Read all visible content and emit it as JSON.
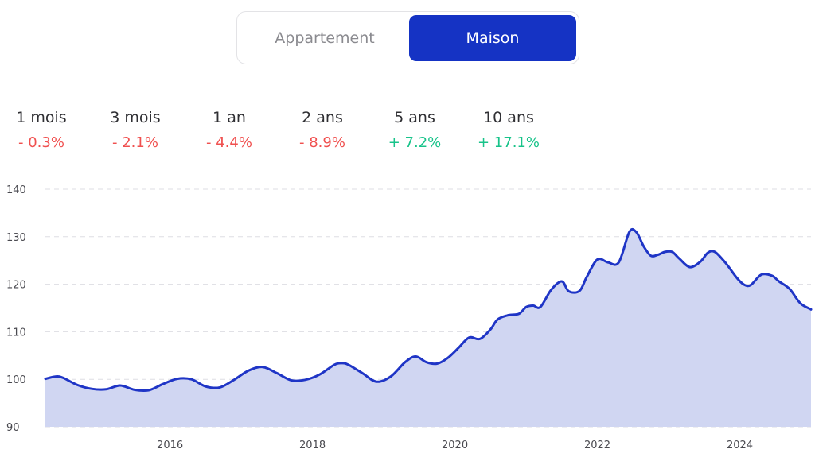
{
  "toggle": {
    "options": [
      {
        "label": "Appartement",
        "active": false
      },
      {
        "label": "Maison",
        "active": true
      }
    ]
  },
  "stats": [
    {
      "label": "1 mois",
      "value": "- 0.3%",
      "trend": "negative"
    },
    {
      "label": "3 mois",
      "value": "- 2.1%",
      "trend": "negative"
    },
    {
      "label": "1 an",
      "value": "- 4.4%",
      "trend": "negative"
    },
    {
      "label": "2 ans",
      "value": "- 8.9%",
      "trend": "negative"
    },
    {
      "label": "5 ans",
      "value": "+ 7.2%",
      "trend": "positive"
    },
    {
      "label": "10 ans",
      "value": "+ 17.1%",
      "trend": "positive"
    }
  ],
  "colors": {
    "accent": "#1533c4",
    "line": "#1f35c6",
    "area": "#d0d6f2",
    "negative": "#f0504f",
    "positive": "#18c38a",
    "grid": "#dddde3"
  },
  "chart_data": {
    "type": "area",
    "ylim": [
      90,
      140
    ],
    "y_ticks": [
      "90",
      "100",
      "110",
      "120",
      "130",
      "140"
    ],
    "x_ticks": [
      {
        "year": 2016,
        "label": "2016"
      },
      {
        "year": 2018,
        "label": "2018"
      },
      {
        "year": 2020,
        "label": "2020"
      },
      {
        "year": 2022,
        "label": "2022"
      },
      {
        "year": 2024,
        "label": "2024"
      }
    ],
    "xlim": [
      2014.25,
      2025.0
    ],
    "grid": true,
    "series": [
      {
        "x": [
          2014.25,
          2014.4,
          2014.5,
          2014.7,
          2014.9,
          2015.1,
          2015.3,
          2015.5,
          2015.7,
          2015.9,
          2016.1,
          2016.3,
          2016.5,
          2016.7,
          2016.9,
          2017.1,
          2017.3,
          2017.5,
          2017.7,
          2017.9,
          2018.1,
          2018.3,
          2018.4,
          2018.5,
          2018.7,
          2018.9,
          2019.1,
          2019.3,
          2019.45,
          2019.6,
          2019.75,
          2019.9,
          2020.05,
          2020.2,
          2020.35,
          2020.5,
          2020.6,
          2020.75,
          2020.9,
          2021.0,
          2021.1,
          2021.2,
          2021.35,
          2021.5,
          2021.6,
          2021.75,
          2021.85,
          2022.0,
          2022.15,
          2022.3,
          2022.45,
          2022.55,
          2022.65,
          2022.75,
          2022.85,
          2022.95,
          2023.05,
          2023.15,
          2023.3,
          2023.45,
          2023.55,
          2023.65,
          2023.8,
          2023.95,
          2024.05,
          2024.15,
          2024.3,
          2024.45,
          2024.55,
          2024.7,
          2024.85,
          2025.0
        ],
        "values": [
          100.1,
          100.6,
          100.3,
          98.8,
          98.0,
          97.9,
          98.7,
          97.8,
          97.7,
          99.0,
          100.1,
          100.0,
          98.5,
          98.3,
          99.9,
          101.8,
          102.6,
          101.3,
          99.8,
          99.9,
          101.0,
          103.0,
          103.4,
          103.1,
          101.3,
          99.5,
          100.6,
          103.6,
          104.8,
          103.6,
          103.3,
          104.5,
          106.6,
          108.8,
          108.5,
          110.5,
          112.6,
          113.5,
          113.8,
          115.2,
          115.5,
          115.2,
          118.8,
          120.6,
          118.5,
          118.6,
          121.5,
          125.2,
          124.6,
          124.6,
          131.0,
          130.9,
          128.0,
          126.0,
          126.2,
          126.8,
          126.8,
          125.4,
          123.6,
          124.8,
          126.6,
          126.8,
          124.5,
          121.5,
          120.0,
          119.8,
          122.0,
          121.8,
          120.6,
          119.0,
          116.0,
          114.7
        ]
      }
    ]
  }
}
